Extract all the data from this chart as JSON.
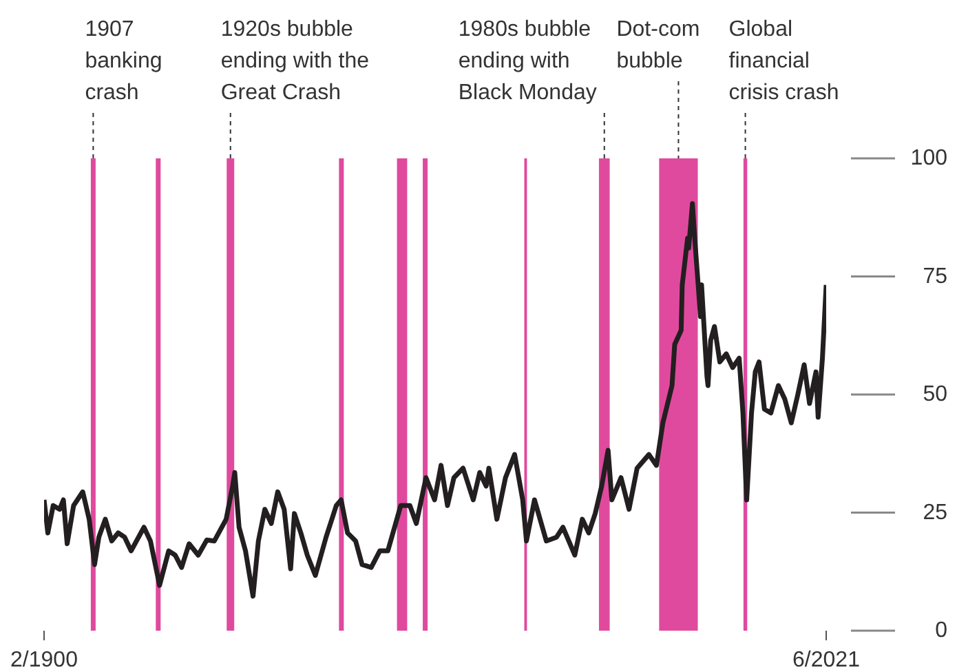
{
  "chart_data": {
    "type": "line",
    "xlim": [
      "1900-02",
      "2021-06"
    ],
    "xticks": [
      {
        "value": "1900-02",
        "label": "2/1900"
      },
      {
        "value": "2021-06",
        "label": "6/2021"
      }
    ],
    "ylim": [
      0,
      100
    ],
    "yticks": [
      0,
      25,
      50,
      75,
      100
    ],
    "x": [
      "1900-02",
      "1900-09",
      "1901-07",
      "1902-07",
      "1903-02",
      "1903-09",
      "1904-09",
      "1906-02",
      "1907-02",
      "1907-12",
      "1908-08",
      "1909-08",
      "1910-08",
      "1911-08",
      "1912-08",
      "1913-08",
      "1915-08",
      "1916-08",
      "1918-01",
      "1919-06",
      "1920-06",
      "1921-06",
      "1922-08",
      "1924-01",
      "1925-05",
      "1926-07",
      "1928-05",
      "1929-05",
      "1929-09",
      "1930-05",
      "1931-05",
      "1932-07",
      "1933-05",
      "1934-05",
      "1935-05",
      "1936-05",
      "1937-05",
      "1938-05",
      "1938-12",
      "1939-12",
      "1940-12",
      "1942-03",
      "1943-11",
      "1945-06",
      "1946-03",
      "1947-03",
      "1948-06",
      "1949-06",
      "1950-11",
      "1952-03",
      "1953-06",
      "1955-06",
      "1956-11",
      "1957-11",
      "1959-05",
      "1960-09",
      "1961-09",
      "1962-09",
      "1963-09",
      "1965-02",
      "1966-09",
      "1967-09",
      "1968-09",
      "1969-02",
      "1970-05",
      "1971-09",
      "1973-02",
      "1974-05",
      "1974-12",
      "1976-03",
      "1978-01",
      "1979-08",
      "1980-08",
      "1982-06",
      "1983-08",
      "1984-08",
      "1985-08",
      "1986-08",
      "1987-08",
      "1988-03",
      "1989-08",
      "1990-11",
      "1992-02",
      "1993-12",
      "1995-02",
      "1996-02",
      "1997-07",
      "1997-12",
      "1998-12",
      "1999-02",
      "1999-12",
      "2000-02",
      "2000-09",
      "2001-02",
      "2001-07",
      "2001-12",
      "2002-02",
      "2002-12",
      "2003-02",
      "2003-07",
      "2004-02",
      "2004-12",
      "2005-12",
      "2006-12",
      "2007-12",
      "2008-07",
      "2009-02",
      "2009-11",
      "2010-06",
      "2011-01",
      "2011-11",
      "2012-11",
      "2014-01",
      "2015-01",
      "2016-01",
      "2017-01",
      "2018-01",
      "2018-11",
      "2019-11",
      "2020-03",
      "2020-11",
      "2021-06"
    ],
    "series": [
      {
        "color": "#231f20",
        "values": [
          27.7,
          20.7,
          26.5,
          25.7,
          27.7,
          18.4,
          26.5,
          29.4,
          23.6,
          14.0,
          19.8,
          23.6,
          19.0,
          20.7,
          19.8,
          16.9,
          21.9,
          19.0,
          9.6,
          16.9,
          16.0,
          13.4,
          18.4,
          16.0,
          19.2,
          19.0,
          23.6,
          30.6,
          33.5,
          21.9,
          16.9,
          7.3,
          19.0,
          25.7,
          22.7,
          29.4,
          25.7,
          13.1,
          24.8,
          20.7,
          16.0,
          11.7,
          19.8,
          26.5,
          27.7,
          20.7,
          19.0,
          14.0,
          13.4,
          16.9,
          16.9,
          26.5,
          26.5,
          22.7,
          32.4,
          27.7,
          35.0,
          26.5,
          32.4,
          34.4,
          27.7,
          33.5,
          30.6,
          34.4,
          23.6,
          32.4,
          37.3,
          27.7,
          19.0,
          27.7,
          19.0,
          19.8,
          21.9,
          16.0,
          23.6,
          20.7,
          24.8,
          30.6,
          38.2,
          27.7,
          32.4,
          25.7,
          34.4,
          37.3,
          35.0,
          44.0,
          51.9,
          60.6,
          63.6,
          73.2,
          83.1,
          81.0,
          90.4,
          81.9,
          74.3,
          66.5,
          73.2,
          53.9,
          51.9,
          61.5,
          64.4,
          56.9,
          58.6,
          55.7,
          57.7,
          46.1,
          27.7,
          46.1,
          54.8,
          56.9,
          46.9,
          46.1,
          51.9,
          49.0,
          44.0,
          49.9,
          56.3,
          48.1,
          54.8,
          45.2,
          57.7,
          73.2
        ]
      }
    ],
    "bands": [
      {
        "axis": "x",
        "from": "1907-05",
        "to": "1908-02",
        "color": "#e04a9e",
        "label": "1907 banking crash"
      },
      {
        "axis": "x",
        "from": "1917-06",
        "to": "1918-03",
        "color": "#e04a9e"
      },
      {
        "axis": "x",
        "from": "1928-06",
        "to": "1929-08",
        "color": "#e04a9e",
        "label": "1920s bubble ending with the Great Crash"
      },
      {
        "axis": "x",
        "from": "1945-11",
        "to": "1946-08",
        "color": "#e04a9e"
      },
      {
        "axis": "x",
        "from": "1954-11",
        "to": "1956-06",
        "color": "#e04a9e"
      },
      {
        "axis": "x",
        "from": "1958-11",
        "to": "1959-08",
        "color": "#e04a9e"
      },
      {
        "axis": "x",
        "from": "1974-08",
        "to": "1975-01",
        "color": "#e04a9e"
      },
      {
        "axis": "x",
        "from": "1986-03",
        "to": "1987-11",
        "color": "#e04a9e",
        "label": "1980s bubble ending with Black Monday"
      },
      {
        "axis": "x",
        "from": "1995-07",
        "to": "2001-07",
        "color": "#e04a9e",
        "label": "Dot-com bubble"
      },
      {
        "axis": "x",
        "from": "2008-08",
        "to": "2009-03",
        "color": "#e04a9e",
        "label": "Global financial crisis crash"
      }
    ],
    "line_style": "solid",
    "marker": "none"
  }
}
